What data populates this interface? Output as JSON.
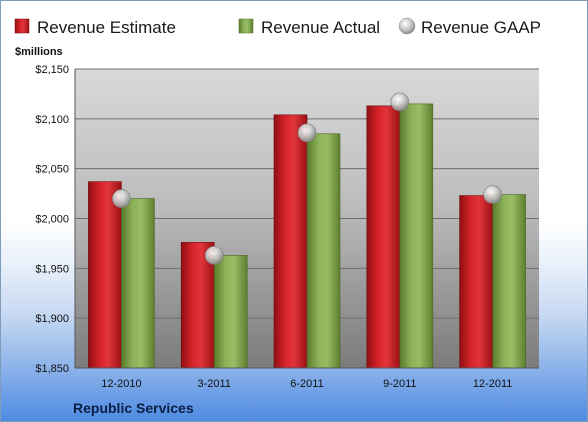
{
  "chart_data": {
    "type": "bar",
    "title": "",
    "ylabel": "$millions",
    "xlabel": "",
    "company": "Republic Services",
    "categories": [
      "12-2010",
      "3-2011",
      "6-2011",
      "9-2011",
      "12-2011"
    ],
    "series": [
      {
        "name": "Revenue Estimate",
        "type": "bar",
        "color": "#c8181e",
        "values": [
          2037,
          1976,
          2104,
          2113,
          2023
        ]
      },
      {
        "name": "Revenue Actual",
        "type": "bar",
        "color": "#7fa14a",
        "values": [
          2020,
          1963,
          2085,
          2115,
          2024
        ]
      },
      {
        "name": "Revenue GAAP",
        "type": "marker",
        "color": "#b8b8b8",
        "values": [
          2020,
          1963,
          2086,
          2117,
          2024
        ]
      }
    ],
    "ylim": [
      1850,
      2150
    ],
    "yticks": [
      1850,
      1900,
      1950,
      2000,
      2050,
      2100,
      2150
    ],
    "ytick_labels": [
      "$1,850",
      "$1,900",
      "$1,950",
      "$2,000",
      "$2,050",
      "$2,100",
      "$2,150"
    ],
    "grid": true,
    "legend_position": "top"
  }
}
